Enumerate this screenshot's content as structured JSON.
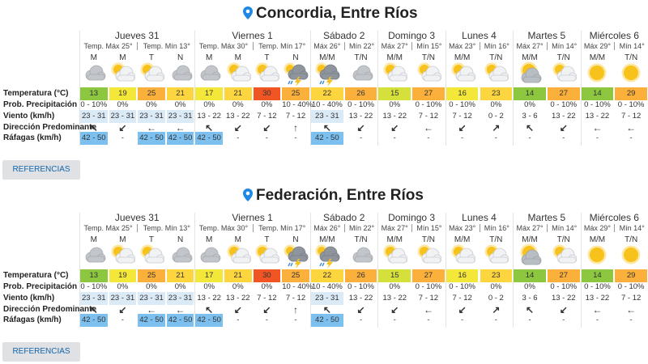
{
  "forecasts": [
    {
      "location": "Concordia, Entre Ríos",
      "days": [
        {
          "name": "Jueves 31",
          "max": "Temp. Máx 25°",
          "min": "Temp. Mín 13°",
          "periods": [
            "M",
            "M",
            "T",
            "N"
          ]
        },
        {
          "name": "Viernes 1",
          "max": "Temp. Máx 30°",
          "min": "Temp. Mín 17°",
          "periods": [
            "M",
            "M",
            "T",
            "N"
          ]
        },
        {
          "name": "Sábado 2",
          "max": "Máx 26°",
          "min": "Mín 22°",
          "periods": [
            "M/M",
            "T/N"
          ]
        },
        {
          "name": "Domingo 3",
          "max": "Máx 27°",
          "min": "Mín 15°",
          "periods": [
            "M/M",
            "T/N"
          ]
        },
        {
          "name": "Lunes 4",
          "max": "Máx 23°",
          "min": "Mín 16°",
          "periods": [
            "M/M",
            "T/N"
          ]
        },
        {
          "name": "Martes 5",
          "max": "Máx 27°",
          "min": "Mín 14°",
          "periods": [
            "M/M",
            "T/N"
          ]
        },
        {
          "name": "Miércoles 6",
          "max": "Máx 29°",
          "min": "Mín 14°",
          "periods": [
            "M/M",
            "T/N"
          ]
        }
      ],
      "rows": [
        {
          "label": "Temperatura (°C)",
          "cells": [
            13,
            19,
            25,
            21,
            17,
            21,
            30,
            25,
            22,
            26,
            15,
            27,
            16,
            23,
            14,
            27,
            14,
            29
          ]
        },
        {
          "label": "Prob. Precipitación",
          "cells": [
            "0 - 10%",
            "0%",
            "0%",
            "0%",
            "0%",
            "0%",
            "0%",
            "10 - 40%",
            "10 - 40%",
            "0 - 10%",
            "0%",
            "0 - 10%",
            "0 - 10%",
            "0%",
            "0%",
            "0 - 10%",
            "0 - 10%",
            "0 - 10%"
          ]
        },
        {
          "label": "Viento (km/h)",
          "cells": [
            "23 - 31",
            "23 - 31",
            "23 - 31",
            "23 - 31",
            "13 - 22",
            "13 - 22",
            "7 - 12",
            "7 - 12",
            "23 - 31",
            "13 - 22",
            "13 - 22",
            "7 - 12",
            "7 - 12",
            "0 - 2",
            "3 - 6",
            "13 - 22",
            "13 - 22",
            "7 - 12"
          ]
        },
        {
          "label": "Dirección Predominante",
          "cells": [
            "↖",
            "↙",
            "←",
            "←",
            "↖",
            "↙",
            "↙",
            "↑",
            "↖",
            "↙",
            "↙",
            "←",
            "↙",
            "↗",
            "↖",
            "↙",
            "←",
            "←"
          ]
        },
        {
          "label": "Ráfagas (km/h)",
          "cells": [
            "42 - 50",
            "-",
            "42 - 50",
            "42 - 50",
            "42 - 50",
            "-",
            "-",
            "-",
            "42 - 50",
            "-",
            "-",
            "-",
            "-",
            "-",
            "-",
            "-",
            "-",
            "-"
          ]
        }
      ],
      "button": "REFERENCIAS"
    },
    {
      "location": "Federación, Entre Ríos",
      "days": [
        {
          "name": "Jueves 31",
          "max": "Temp. Máx 25°",
          "min": "Temp. Mín 13°",
          "periods": [
            "M",
            "M",
            "T",
            "N"
          ]
        },
        {
          "name": "Viernes 1",
          "max": "Temp. Máx 30°",
          "min": "Temp. Mín 17°",
          "periods": [
            "M",
            "M",
            "T",
            "N"
          ]
        },
        {
          "name": "Sábado 2",
          "max": "Máx 26°",
          "min": "Mín 22°",
          "periods": [
            "M/M",
            "T/N"
          ]
        },
        {
          "name": "Domingo 3",
          "max": "Máx 27°",
          "min": "Mín 15°",
          "periods": [
            "M/M",
            "T/N"
          ]
        },
        {
          "name": "Lunes 4",
          "max": "Máx 23°",
          "min": "Mín 16°",
          "periods": [
            "M/M",
            "T/N"
          ]
        },
        {
          "name": "Martes 5",
          "max": "Máx 27°",
          "min": "Mín 14°",
          "periods": [
            "M/M",
            "T/N"
          ]
        },
        {
          "name": "Miércoles 6",
          "max": "Máx 29°",
          "min": "Mín 14°",
          "periods": [
            "M/M",
            "T/N"
          ]
        }
      ],
      "rows": [
        {
          "label": "Temperatura (°C)",
          "cells": [
            13,
            19,
            25,
            21,
            17,
            21,
            30,
            25,
            22,
            26,
            15,
            27,
            16,
            23,
            14,
            27,
            14,
            29
          ]
        },
        {
          "label": "Prob. Precipitación",
          "cells": [
            "0 - 10%",
            "0%",
            "0%",
            "0%",
            "0%",
            "0%",
            "0%",
            "10 - 40%",
            "10 - 40%",
            "0 - 10%",
            "0%",
            "0 - 10%",
            "0 - 10%",
            "0%",
            "0%",
            "0 - 10%",
            "0 - 10%",
            "0 - 10%"
          ]
        },
        {
          "label": "Viento (km/h)",
          "cells": [
            "23 - 31",
            "23 - 31",
            "23 - 31",
            "23 - 31",
            "13 - 22",
            "13 - 22",
            "7 - 12",
            "7 - 12",
            "23 - 31",
            "13 - 22",
            "13 - 22",
            "7 - 12",
            "7 - 12",
            "0 - 2",
            "3 - 6",
            "13 - 22",
            "13 - 22",
            "7 - 12"
          ]
        },
        {
          "label": "Dirección Predominante",
          "cells": [
            "↖",
            "↙",
            "←",
            "←",
            "↖",
            "↙",
            "↙",
            "↑",
            "↖",
            "↙",
            "↙",
            "←",
            "↙",
            "↗",
            "↖",
            "↙",
            "←",
            "←"
          ]
        },
        {
          "label": "Ráfagas (km/h)",
          "cells": [
            "42 - 50",
            "-",
            "42 - 50",
            "42 - 50",
            "42 - 50",
            "-",
            "-",
            "-",
            "42 - 50",
            "-",
            "-",
            "-",
            "-",
            "-",
            "-",
            "-",
            "-",
            "-"
          ]
        }
      ],
      "button": "REFERENCIAS"
    }
  ]
}
